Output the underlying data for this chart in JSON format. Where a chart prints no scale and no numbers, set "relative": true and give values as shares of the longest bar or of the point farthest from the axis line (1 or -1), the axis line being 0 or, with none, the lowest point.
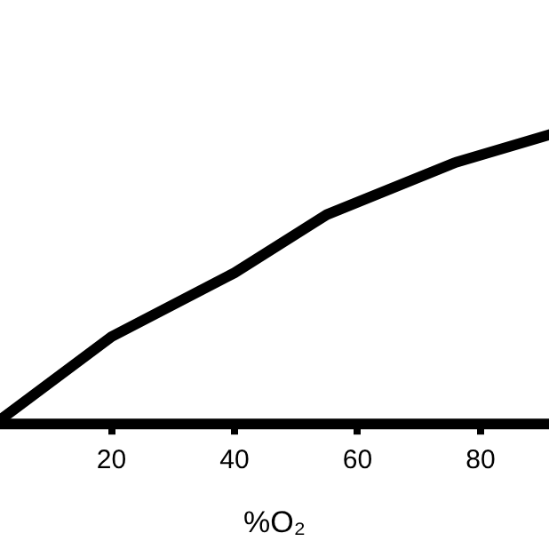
{
  "chart_data": {
    "type": "line",
    "xlabel": "%O₂",
    "relative": true,
    "xlim": [
      1,
      92
    ],
    "xticks": [
      20,
      40,
      60,
      80
    ],
    "grid": false,
    "legend": false,
    "marker": "none",
    "line_style": "solid",
    "series": [
      {
        "color": "#000000",
        "x": [
          1,
          20,
          40,
          55,
          76,
          92
        ],
        "values": [
          0,
          0.3,
          0.52,
          0.72,
          0.9,
          1
        ]
      }
    ]
  }
}
